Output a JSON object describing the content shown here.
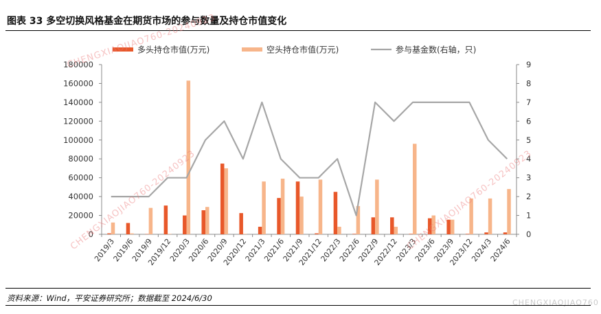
{
  "header": {
    "title": "图表 33   多空切换风格基金在期货市场的参与数量及持仓市值变化"
  },
  "footer": {
    "source": "资料来源：Wind，平安证券研究所；数据截至 2024/6/30"
  },
  "watermarks": {
    "main": "CHENGXIAOJIAO760-20240923",
    "corner": "CHENGXIAOJIAO760"
  },
  "colors": {
    "long": "#e8582a",
    "short": "#f7b58a",
    "count": "#a6a6a6"
  },
  "chart_data": {
    "type": "bar",
    "categories": [
      "2019/3",
      "2019/6",
      "2019/9",
      "2019/12",
      "2020/3",
      "2020/6",
      "2020/9",
      "2020/12",
      "2021/3",
      "2021/6",
      "2021/9",
      "2021/12",
      "2022/3",
      "2022/6",
      "2022/9",
      "2022/12",
      "2023/3",
      "2023/6",
      "2023/9",
      "2023/12",
      "2024/3",
      "2024/6"
    ],
    "series": [
      {
        "name": "多头持仓市值(万元)",
        "type": "bar",
        "axis": "left",
        "values": [
          1000,
          12000,
          300,
          30500,
          20000,
          25500,
          75000,
          22500,
          8000,
          38500,
          56000,
          1000,
          45000,
          500,
          18000,
          18000,
          500,
          17000,
          15500,
          500,
          2000,
          2000
        ]
      },
      {
        "name": "空头持仓市值(万元)",
        "type": "bar",
        "axis": "left",
        "values": [
          12500,
          1000,
          28000,
          500,
          163000,
          29000,
          70000,
          500,
          56000,
          59000,
          40000,
          58000,
          8000,
          30000,
          58000,
          8000,
          96000,
          20000,
          15500,
          38000,
          38000,
          48000
        ]
      },
      {
        "name": "参与基金数(右轴，只)",
        "type": "line",
        "axis": "right",
        "values": [
          2,
          2,
          2,
          3,
          3,
          5,
          6,
          4,
          7,
          4,
          3,
          3,
          4,
          1,
          7,
          6,
          7,
          7,
          7,
          7,
          5,
          4
        ]
      }
    ],
    "y_left": {
      "min": 0,
      "max": 180000,
      "ticks": [
        "0",
        "20000",
        "40000",
        "60000",
        "80000",
        "100000",
        "120000",
        "140000",
        "160000",
        "180000"
      ]
    },
    "y_right": {
      "min": 0,
      "max": 9,
      "ticks": [
        "0",
        "1",
        "2",
        "3",
        "4",
        "5",
        "6",
        "7",
        "8",
        "9"
      ]
    },
    "legend_position": "top",
    "grid": false
  }
}
